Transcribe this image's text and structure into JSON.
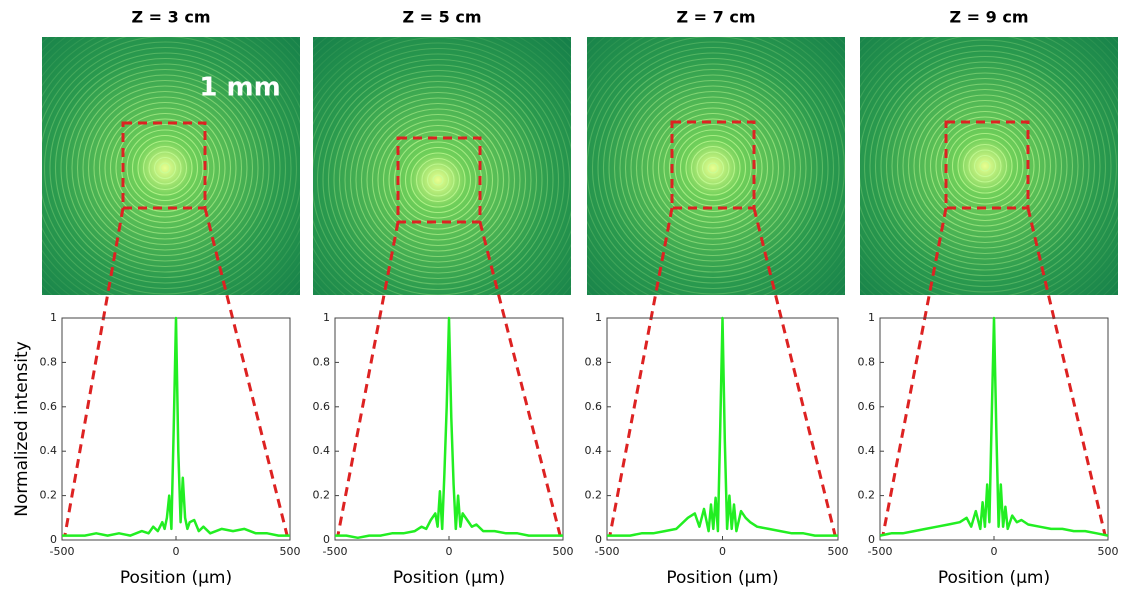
{
  "scale_bar": {
    "label": "1 mm"
  },
  "chart_data": [
    {
      "type": "line",
      "title": "Z = 3 cm",
      "x_label": "Position (μm)",
      "y_label": "Normalized intensity",
      "color": "#22ee22",
      "x": [
        -500,
        -450,
        -400,
        -350,
        -300,
        -250,
        -200,
        -150,
        -120,
        -100,
        -80,
        -60,
        -50,
        -40,
        -30,
        -20,
        -10,
        0,
        10,
        20,
        30,
        40,
        50,
        60,
        80,
        100,
        120,
        150,
        200,
        250,
        300,
        350,
        400,
        450,
        500
      ],
      "values": [
        0.02,
        0.02,
        0.02,
        0.03,
        0.02,
        0.03,
        0.02,
        0.04,
        0.03,
        0.06,
        0.04,
        0.08,
        0.05,
        0.1,
        0.2,
        0.05,
        0.5,
        1,
        0.4,
        0.08,
        0.28,
        0.1,
        0.05,
        0.08,
        0.09,
        0.04,
        0.06,
        0.03,
        0.05,
        0.04,
        0.05,
        0.03,
        0.03,
        0.02,
        0.02
      ],
      "xlim": [
        -500,
        500
      ],
      "xticks": [
        -500,
        0,
        500
      ],
      "ylim": [
        0,
        1
      ],
      "yticks": [
        0,
        0.2,
        0.4,
        0.6,
        0.8,
        1
      ]
    },
    {
      "type": "line",
      "title": "Z = 5 cm",
      "x_label": "Position (μm)",
      "color": "#22ee22",
      "x": [
        -500,
        -450,
        -400,
        -350,
        -300,
        -250,
        -200,
        -150,
        -120,
        -100,
        -80,
        -60,
        -50,
        -40,
        -30,
        -20,
        -10,
        0,
        10,
        20,
        30,
        40,
        50,
        60,
        80,
        100,
        120,
        150,
        200,
        250,
        300,
        350,
        400,
        450,
        500
      ],
      "values": [
        0.02,
        0.02,
        0.01,
        0.02,
        0.02,
        0.03,
        0.03,
        0.04,
        0.06,
        0.05,
        0.09,
        0.12,
        0.06,
        0.22,
        0.05,
        0.3,
        0.6,
        1,
        0.55,
        0.25,
        0.05,
        0.2,
        0.06,
        0.12,
        0.09,
        0.06,
        0.07,
        0.04,
        0.04,
        0.03,
        0.03,
        0.02,
        0.02,
        0.02,
        0.02
      ],
      "xlim": [
        -500,
        500
      ],
      "xticks": [
        -500,
        0,
        500
      ],
      "ylim": [
        0,
        1
      ],
      "yticks": [
        0,
        0.2,
        0.4,
        0.6,
        0.8,
        1
      ]
    },
    {
      "type": "line",
      "title": "Z = 7 cm",
      "x_label": "Position (μm)",
      "color": "#22ee22",
      "x": [
        -500,
        -450,
        -400,
        -350,
        -300,
        -250,
        -200,
        -150,
        -120,
        -100,
        -80,
        -60,
        -50,
        -40,
        -30,
        -20,
        -10,
        0,
        10,
        20,
        30,
        40,
        50,
        60,
        80,
        100,
        120,
        150,
        200,
        250,
        300,
        350,
        400,
        450,
        500
      ],
      "values": [
        0.02,
        0.02,
        0.02,
        0.03,
        0.03,
        0.04,
        0.05,
        0.1,
        0.12,
        0.06,
        0.14,
        0.04,
        0.16,
        0.05,
        0.19,
        0.04,
        0.5,
        1,
        0.45,
        0.05,
        0.2,
        0.05,
        0.16,
        0.04,
        0.13,
        0.1,
        0.08,
        0.06,
        0.05,
        0.04,
        0.03,
        0.03,
        0.02,
        0.02,
        0.02
      ],
      "xlim": [
        -500,
        500
      ],
      "xticks": [
        -500,
        0,
        500
      ],
      "ylim": [
        0,
        1
      ],
      "yticks": [
        0,
        0.2,
        0.4,
        0.6,
        0.8,
        1
      ]
    },
    {
      "type": "line",
      "title": "Z = 9 cm",
      "x_label": "Position (μm)",
      "color": "#22ee22",
      "x": [
        -500,
        -450,
        -400,
        -350,
        -300,
        -250,
        -200,
        -150,
        -120,
        -100,
        -80,
        -60,
        -50,
        -40,
        -30,
        -20,
        -10,
        0,
        10,
        20,
        30,
        40,
        50,
        60,
        80,
        100,
        120,
        150,
        200,
        250,
        300,
        350,
        400,
        450,
        500
      ],
      "values": [
        0.02,
        0.03,
        0.03,
        0.04,
        0.05,
        0.06,
        0.07,
        0.08,
        0.1,
        0.06,
        0.13,
        0.05,
        0.17,
        0.06,
        0.25,
        0.08,
        0.55,
        1,
        0.5,
        0.06,
        0.25,
        0.06,
        0.15,
        0.05,
        0.11,
        0.08,
        0.09,
        0.07,
        0.06,
        0.05,
        0.05,
        0.04,
        0.04,
        0.03,
        0.02
      ],
      "xlim": [
        -500,
        500
      ],
      "xticks": [
        -500,
        0,
        500
      ],
      "ylim": [
        0,
        1
      ],
      "yticks": [
        0,
        0.2,
        0.4,
        0.6,
        0.8,
        1
      ]
    }
  ]
}
